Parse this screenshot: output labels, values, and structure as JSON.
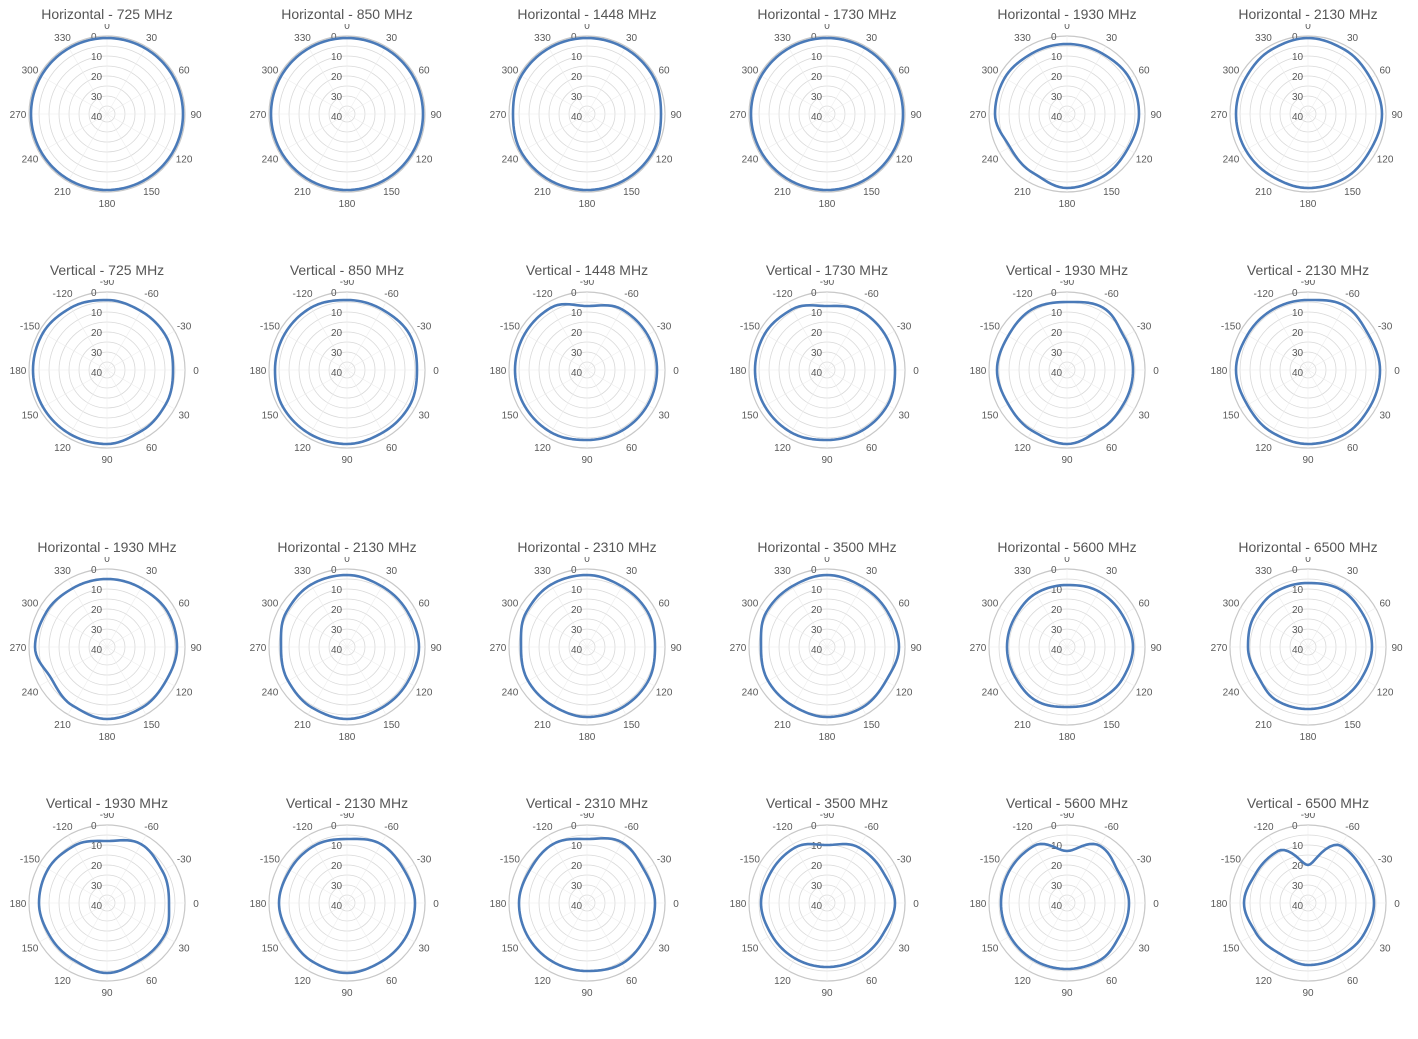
{
  "colors": {
    "series": "#4a7ab8",
    "grid": "#d9d9d9",
    "text": "#595959",
    "title": "#555555"
  },
  "polar_axis": {
    "radial_ticks": [
      "0",
      "10",
      "20",
      "30",
      "40"
    ],
    "horizontal_angles": [
      "0",
      "30",
      "60",
      "90",
      "120",
      "150",
      "180",
      "210",
      "240",
      "270",
      "300",
      "330"
    ],
    "vertical_angles": [
      "-90",
      "-60",
      "-30",
      "0",
      "30",
      "60",
      "90",
      "120",
      "150",
      "180",
      "-150",
      "-120"
    ]
  },
  "chart_data": [
    {
      "type": "polar",
      "title": "Horizontal - 725 MHz",
      "angle_labels": "horizontal",
      "radial_ticks": [
        "0",
        "10",
        "20",
        "30",
        "40"
      ],
      "series": [
        {
          "angles_deg": [
            0,
            30,
            60,
            90,
            120,
            150,
            180,
            210,
            240,
            270,
            300,
            330
          ],
          "values": [
            1,
            1,
            1,
            1,
            1,
            1,
            1,
            1,
            1,
            1,
            1,
            1
          ]
        }
      ]
    },
    {
      "type": "polar",
      "title": "Horizontal - 850 MHz",
      "angle_labels": "horizontal",
      "radial_ticks": [
        "0",
        "10",
        "20",
        "30",
        "40"
      ],
      "series": [
        {
          "angles_deg": [
            0,
            30,
            60,
            90,
            120,
            150,
            180,
            210,
            240,
            270,
            300,
            330
          ],
          "values": [
            1,
            1,
            1,
            1,
            1,
            1,
            1,
            1,
            1,
            1,
            1,
            1
          ]
        }
      ]
    },
    {
      "type": "polar",
      "title": "Horizontal - 1448 MHz",
      "angle_labels": "horizontal",
      "radial_ticks": [
        "0",
        "10",
        "20",
        "30",
        "40"
      ],
      "series": [
        {
          "angles_deg": [
            0,
            30,
            60,
            90,
            120,
            150,
            180,
            210,
            240,
            270,
            300,
            330
          ],
          "values": [
            1,
            1,
            1,
            2,
            1,
            1,
            1,
            1,
            1,
            2,
            1,
            1
          ]
        }
      ]
    },
    {
      "type": "polar",
      "title": "Horizontal - 1730 MHz",
      "angle_labels": "horizontal",
      "radial_ticks": [
        "0",
        "10",
        "20",
        "30",
        "40"
      ],
      "series": [
        {
          "angles_deg": [
            0,
            30,
            60,
            90,
            120,
            150,
            180,
            210,
            240,
            270,
            300,
            330
          ],
          "values": [
            1,
            1,
            1,
            1,
            1,
            1,
            1,
            1,
            1,
            1,
            1,
            1
          ]
        }
      ]
    },
    {
      "type": "polar",
      "title": "Horizontal - 1930 MHz",
      "angle_labels": "horizontal",
      "radial_ticks": [
        "0",
        "10",
        "20",
        "30",
        "40"
      ],
      "series": [
        {
          "angles_deg": [
            0,
            30,
            60,
            90,
            120,
            150,
            180,
            210,
            240,
            270,
            300,
            330
          ],
          "values": [
            4,
            4,
            3,
            3,
            4,
            3,
            2,
            5,
            6,
            3,
            3,
            4
          ]
        }
      ]
    },
    {
      "type": "polar",
      "title": "Horizontal - 2130 MHz",
      "angle_labels": "horizontal",
      "radial_ticks": [
        "0",
        "10",
        "20",
        "30",
        "40"
      ],
      "series": [
        {
          "angles_deg": [
            0,
            30,
            60,
            90,
            120,
            150,
            180,
            210,
            240,
            270,
            300,
            330
          ],
          "values": [
            1,
            2,
            3,
            2,
            3,
            2,
            2,
            3,
            3,
            3,
            3,
            2
          ]
        }
      ]
    },
    {
      "type": "polar",
      "title": "Vertical - 725 MHz",
      "angle_labels": "vertical",
      "radial_ticks": [
        "0",
        "10",
        "20",
        "30",
        "40"
      ],
      "series": [
        {
          "angles_deg": [
            -90,
            -60,
            -30,
            0,
            30,
            60,
            90,
            120,
            150,
            180,
            -150,
            -120
          ],
          "values": [
            4,
            5,
            5,
            6,
            5,
            4,
            2,
            2,
            2,
            2,
            2,
            3
          ]
        }
      ]
    },
    {
      "type": "polar",
      "title": "Vertical - 850 MHz",
      "angle_labels": "vertical",
      "radial_ticks": [
        "0",
        "10",
        "20",
        "30",
        "40"
      ],
      "series": [
        {
          "angles_deg": [
            -90,
            -60,
            -30,
            0,
            30,
            60,
            90,
            120,
            150,
            180,
            -150,
            -120
          ],
          "values": [
            4,
            4,
            3,
            4,
            3,
            3,
            2,
            2,
            2,
            3,
            3,
            3
          ]
        }
      ]
    },
    {
      "type": "polar",
      "title": "Vertical - 1448 MHz",
      "angle_labels": "vertical",
      "radial_ticks": [
        "0",
        "10",
        "20",
        "30",
        "40"
      ],
      "series": [
        {
          "angles_deg": [
            -90,
            -60,
            -30,
            0,
            30,
            60,
            90,
            120,
            150,
            180,
            -150,
            -120
          ],
          "values": [
            7,
            4,
            4,
            4,
            4,
            4,
            4,
            3,
            3,
            3,
            3,
            3
          ]
        }
      ]
    },
    {
      "type": "polar",
      "title": "Vertical - 1730 MHz",
      "angle_labels": "vertical",
      "radial_ticks": [
        "0",
        "10",
        "20",
        "30",
        "40"
      ],
      "series": [
        {
          "angles_deg": [
            -90,
            -60,
            -30,
            0,
            30,
            60,
            90,
            120,
            150,
            180,
            -150,
            -120
          ],
          "values": [
            7,
            5,
            5,
            5,
            4,
            4,
            4,
            3,
            3,
            3,
            3,
            4
          ]
        }
      ]
    },
    {
      "type": "polar",
      "title": "Vertical - 1930 MHz",
      "angle_labels": "vertical",
      "radial_ticks": [
        "0",
        "10",
        "20",
        "30",
        "40"
      ],
      "series": [
        {
          "angles_deg": [
            -90,
            -60,
            -30,
            0,
            30,
            60,
            90,
            120,
            150,
            180,
            -150,
            -120
          ],
          "values": [
            5,
            3,
            6,
            6,
            6,
            5,
            2,
            4,
            5,
            4,
            5,
            4
          ]
        }
      ]
    },
    {
      "type": "polar",
      "title": "Vertical - 2130 MHz",
      "angle_labels": "vertical",
      "radial_ticks": [
        "0",
        "10",
        "20",
        "30",
        "40"
      ],
      "series": [
        {
          "angles_deg": [
            -90,
            -60,
            -30,
            0,
            30,
            60,
            90,
            120,
            150,
            180,
            -150,
            -120
          ],
          "values": [
            4,
            2,
            4,
            3,
            3,
            2,
            2,
            3,
            4,
            3,
            4,
            4
          ]
        }
      ]
    },
    {
      "type": "polar",
      "title": "Horizontal - 1930 MHz",
      "angle_labels": "horizontal",
      "radial_ticks": [
        "0",
        "10",
        "20",
        "30",
        "40"
      ],
      "series": [
        {
          "angles_deg": [
            0,
            30,
            60,
            90,
            120,
            150,
            180,
            210,
            240,
            270,
            300,
            330
          ],
          "values": [
            5,
            5,
            4,
            4,
            5,
            4,
            3,
            5,
            7,
            3,
            4,
            5
          ]
        }
      ]
    },
    {
      "type": "polar",
      "title": "Horizontal - 2130 MHz",
      "angle_labels": "horizontal",
      "radial_ticks": [
        "0",
        "10",
        "20",
        "30",
        "40"
      ],
      "series": [
        {
          "angles_deg": [
            0,
            30,
            60,
            90,
            120,
            150,
            180,
            210,
            240,
            270,
            300,
            330
          ],
          "values": [
            3,
            4,
            4,
            3,
            4,
            4,
            3,
            4,
            5,
            6,
            4,
            3
          ]
        }
      ]
    },
    {
      "type": "polar",
      "title": "Horizontal - 2310 MHz",
      "angle_labels": "horizontal",
      "radial_ticks": [
        "0",
        "10",
        "20",
        "30",
        "40"
      ],
      "series": [
        {
          "angles_deg": [
            0,
            30,
            60,
            90,
            120,
            150,
            180,
            210,
            240,
            270,
            300,
            330
          ],
          "values": [
            3,
            4,
            4,
            5,
            4,
            4,
            4,
            5,
            5,
            6,
            4,
            3
          ]
        }
      ]
    },
    {
      "type": "polar",
      "title": "Horizontal - 3500 MHz",
      "angle_labels": "horizontal",
      "radial_ticks": [
        "0",
        "10",
        "20",
        "30",
        "40"
      ],
      "series": [
        {
          "angles_deg": [
            0,
            30,
            60,
            90,
            120,
            150,
            180,
            210,
            240,
            270,
            300,
            330
          ],
          "values": [
            3,
            4,
            4,
            3,
            5,
            4,
            4,
            5,
            5,
            6,
            4,
            4
          ]
        }
      ]
    },
    {
      "type": "polar",
      "title": "Horizontal - 5600 MHz",
      "angle_labels": "horizontal",
      "radial_ticks": [
        "0",
        "10",
        "20",
        "30",
        "40"
      ],
      "series": [
        {
          "angles_deg": [
            0,
            30,
            60,
            90,
            120,
            150,
            180,
            210,
            240,
            270,
            300,
            330
          ],
          "values": [
            8,
            7,
            7,
            6,
            7,
            8,
            9,
            8,
            9,
            9,
            9,
            8
          ]
        }
      ]
    },
    {
      "type": "polar",
      "title": "Horizontal - 6500 MHz",
      "angle_labels": "horizontal",
      "radial_ticks": [
        "0",
        "10",
        "20",
        "30",
        "40"
      ],
      "series": [
        {
          "angles_deg": [
            0,
            30,
            60,
            90,
            120,
            150,
            180,
            210,
            240,
            270,
            300,
            330
          ],
          "values": [
            7,
            6,
            7,
            7,
            8,
            8,
            8,
            8,
            10,
            9,
            8,
            7
          ]
        }
      ]
    },
    {
      "type": "polar",
      "title": "Vertical - 1930 MHz",
      "angle_labels": "vertical",
      "radial_ticks": [
        "0",
        "10",
        "20",
        "30",
        "40"
      ],
      "series": [
        {
          "angles_deg": [
            -90,
            -60,
            -30,
            0,
            30,
            60,
            90,
            120,
            150,
            180,
            -150,
            -120
          ],
          "values": [
            8,
            5,
            7,
            8,
            6,
            6,
            4,
            6,
            6,
            5,
            5,
            6
          ]
        }
      ]
    },
    {
      "type": "polar",
      "title": "Vertical - 2130 MHz",
      "angle_labels": "vertical",
      "radial_ticks": [
        "0",
        "10",
        "20",
        "30",
        "40"
      ],
      "series": [
        {
          "angles_deg": [
            -90,
            -60,
            -30,
            0,
            30,
            60,
            90,
            120,
            150,
            180,
            -150,
            -120
          ],
          "values": [
            7,
            5,
            6,
            5,
            5,
            5,
            4,
            5,
            6,
            5,
            6,
            6
          ]
        }
      ]
    },
    {
      "type": "polar",
      "title": "Vertical - 2310 MHz",
      "angle_labels": "vertical",
      "radial_ticks": [
        "0",
        "10",
        "20",
        "30",
        "40"
      ],
      "series": [
        {
          "angles_deg": [
            -90,
            -60,
            -30,
            0,
            30,
            60,
            90,
            120,
            150,
            180,
            -150,
            -120
          ],
          "values": [
            7,
            4,
            6,
            5,
            5,
            4,
            5,
            5,
            5,
            5,
            6,
            5
          ]
        }
      ]
    },
    {
      "type": "polar",
      "title": "Vertical - 3500 MHz",
      "angle_labels": "vertical",
      "radial_ticks": [
        "0",
        "10",
        "20",
        "30",
        "40"
      ],
      "series": [
        {
          "angles_deg": [
            -90,
            -60,
            -30,
            0,
            30,
            60,
            90,
            120,
            150,
            180,
            -150,
            -120
          ],
          "values": [
            10,
            7,
            7,
            5,
            7,
            7,
            7,
            7,
            7,
            6,
            7,
            7
          ]
        }
      ]
    },
    {
      "type": "polar",
      "title": "Vertical - 5600 MHz",
      "angle_labels": "vertical",
      "radial_ticks": [
        "0",
        "10",
        "20",
        "30",
        "40"
      ],
      "series": [
        {
          "angles_deg": [
            -90,
            -60,
            -30,
            0,
            30,
            60,
            90,
            120,
            150,
            180,
            -150,
            -120
          ],
          "values": [
            13,
            6,
            9,
            8,
            8,
            6,
            6,
            6,
            6,
            6,
            6,
            6
          ]
        }
      ]
    },
    {
      "type": "polar",
      "title": "Vertical - 6500 MHz",
      "angle_labels": "vertical",
      "radial_ticks": [
        "0",
        "10",
        "20",
        "30",
        "40"
      ],
      "series": [
        {
          "angles_deg": [
            -90,
            -60,
            -30,
            0,
            30,
            60,
            90,
            120,
            150,
            180,
            -150,
            -120
          ],
          "values": [
            20,
            6,
            7,
            6,
            7,
            8,
            8,
            10,
            9,
            7,
            9,
            9
          ]
        }
      ]
    }
  ]
}
